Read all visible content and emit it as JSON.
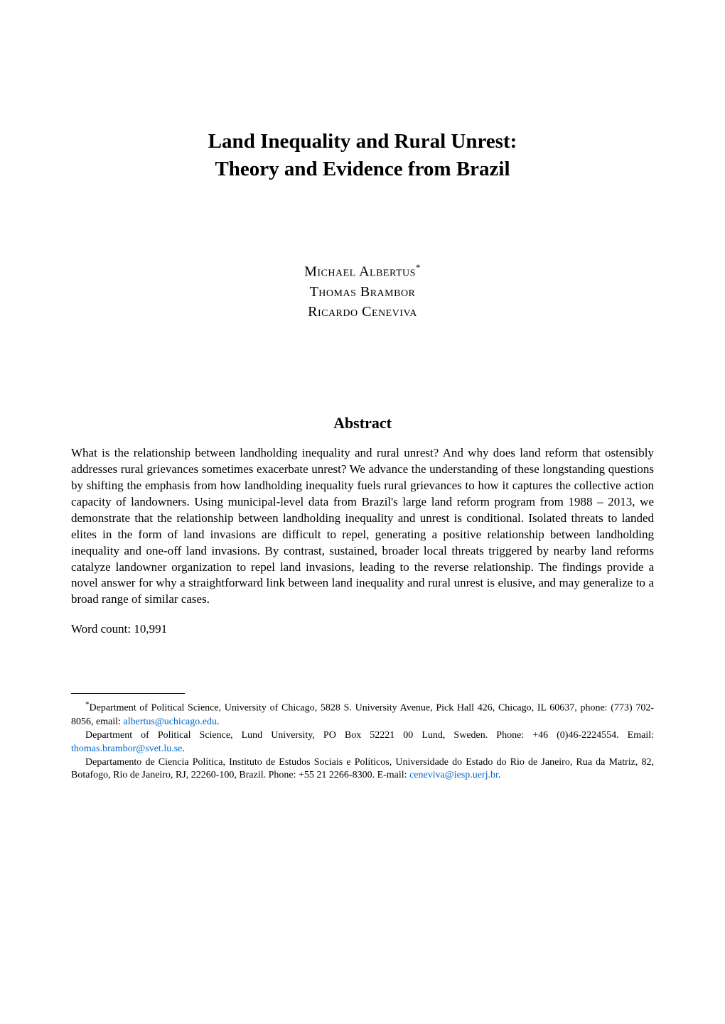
{
  "title": {
    "line1": "Land Inequality and Rural Unrest:",
    "line2": "Theory and Evidence from Brazil"
  },
  "authors": [
    {
      "name": "Michael Albertus",
      "marker": "*"
    },
    {
      "name": "Thomas Brambor",
      "marker": ""
    },
    {
      "name": "Ricardo Ceneviva",
      "marker": ""
    }
  ],
  "abstract": {
    "heading": "Abstract",
    "text": "What is the relationship between landholding inequality and rural unrest? And why does land reform that ostensibly addresses rural grievances sometimes exacerbate unrest? We advance the understanding of these longstanding questions by shifting the emphasis from how landholding inequality fuels rural grievances to how it captures the collective action capacity of landowners. Using municipal-level data from Brazil's large land reform program from 1988 – 2013, we demonstrate that the relationship between landholding inequality and unrest is conditional. Isolated threats to landed elites in the form of land invasions are difficult to repel, generating a positive relationship between landholding inequality and one-off land invasions. By contrast, sustained, broader local threats triggered by nearby land reforms catalyze landowner organization to repel land invasions, leading to the reverse relationship. The findings provide a novel answer for why a straightforward link between land inequality and rural unrest is elusive, and may generalize to a broad range of similar cases."
  },
  "word_count_label": "Word count: 10,991",
  "footnotes": [
    {
      "marker": "*",
      "text_before": "Department of Political Science, University of Chicago, 5828 S. University Avenue, Pick Hall 426, Chicago, IL 60637, phone: (773) 702-8056, email: ",
      "link": "albertus@uchicago.edu",
      "text_after": "."
    },
    {
      "marker": "",
      "text_before": "Department of Political Science, Lund University, PO Box 52221 00 Lund, Sweden. Phone: +46 (0)46-2224554. Email: ",
      "link": "thomas.brambor@svet.lu.se",
      "text_after": "."
    },
    {
      "marker": "",
      "text_before": "Departamento de Ciencia Política, Instituto de Estudos Sociais e Políticos, Universidade do Estado do Rio de Janeiro, Rua da Matriz, 82, Botafogo, Rio de Janeiro, RJ, 22260-100, Brazil. Phone: +55 21 2266-8300. E-mail: ",
      "link": "ceneviva@iesp.uerj.br",
      "text_after": "."
    }
  ],
  "colors": {
    "background": "#ffffff",
    "text": "#000000",
    "link": "#0066cc"
  },
  "typography": {
    "title_fontsize": 29,
    "author_fontsize": 20,
    "abstract_heading_fontsize": 22,
    "body_fontsize": 17,
    "footnote_fontsize": 14
  }
}
